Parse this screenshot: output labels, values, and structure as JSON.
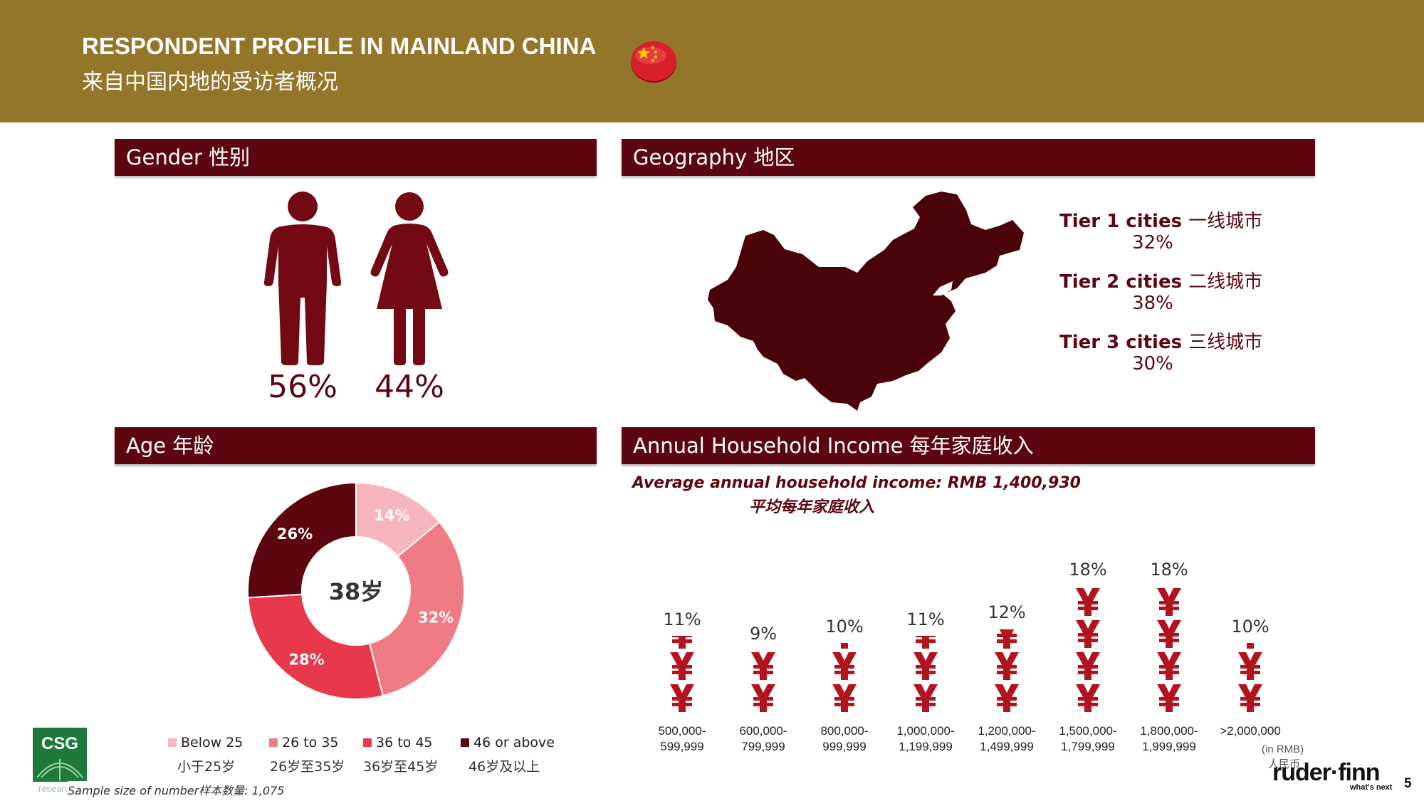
{
  "header": {
    "title_en": "RESPONDENT PROFILE IN MAINLAND CHINA",
    "title_cn": "来自中国内地的受访者概况",
    "flag_icon": "china-flag-icon"
  },
  "colors": {
    "header_bg": "#94762a",
    "band_bg": "#5c0710",
    "dark_red": "#5c0710",
    "age_below_25": "#f7b6be",
    "age_26_35": "#ef7b85",
    "age_36_45": "#e8384b",
    "age_46_above": "#5c0710"
  },
  "gender": {
    "title": "Gender 性别",
    "male_pct": "56%",
    "female_pct": "44%",
    "male_icon": "male-figure-icon",
    "female_icon": "female-figure-icon"
  },
  "geography": {
    "title": "Geography 地区",
    "map_icon": "china-map-icon",
    "tiers": [
      {
        "label": "Tier 1 cities",
        "label_cn": "一线城市",
        "value": "32%"
      },
      {
        "label": "Tier 2 cities",
        "label_cn": "二线城市",
        "value": "38%"
      },
      {
        "label": "Tier 3 cities",
        "label_cn": "三线城市",
        "value": "30%"
      }
    ]
  },
  "age": {
    "title": "Age 年龄",
    "center_label": "38岁",
    "slices": [
      {
        "label": "14%",
        "value": 14,
        "color": "#f7b6be"
      },
      {
        "label": "32%",
        "value": 32,
        "color": "#ef7b85"
      },
      {
        "label": "28%",
        "value": 28,
        "color": "#e8384b"
      },
      {
        "label": "26%",
        "value": 26,
        "color": "#5c0710"
      }
    ],
    "legend": [
      {
        "en": "Below 25",
        "cn": "小于25岁",
        "color": "#f7b6be"
      },
      {
        "en": "26 to 35",
        "cn": "26岁至35岁",
        "color": "#ef7b85"
      },
      {
        "en": "36 to 45",
        "cn": "36岁至45岁",
        "color": "#e8384b"
      },
      {
        "en": "46 or above",
        "cn": "46岁及以上",
        "color": "#5c0710"
      }
    ]
  },
  "income": {
    "title": "Annual Household Income 每年家庭收入",
    "avg_en": "Average annual household income: RMB 1,400,930",
    "avg_cn": "平均每年家庭收入",
    "unit_en": "(in RMB)",
    "unit_cn": "人民币",
    "yen_icon": "yen-icon",
    "brackets": [
      {
        "range": "500,000-\n599,999",
        "pct": "11%",
        "value": 11
      },
      {
        "range": "600,000-\n799,999",
        "pct": "9%",
        "value": 9
      },
      {
        "range": "800,000-\n999,999",
        "pct": "10%",
        "value": 10
      },
      {
        "range": "1,000,000-\n1,199,999",
        "pct": "11%",
        "value": 11
      },
      {
        "range": "1,200,000-\n1,499,999",
        "pct": "12%",
        "value": 12
      },
      {
        "range": "1,500,000-\n1,799,999",
        "pct": "18%",
        "value": 18
      },
      {
        "range": "1,800,000-\n1,999,999",
        "pct": "18%",
        "value": 18
      },
      {
        "range": ">2,000,000",
        "pct": "10%",
        "value": 10
      }
    ]
  },
  "footer": {
    "sample_size": "Sample size of number样本数量: 1,075",
    "csg_logo_text": "CSG",
    "csg_sub": "research",
    "rf_logo": "ruder·finn",
    "rf_tagline": "what's next",
    "page_number": "5"
  }
}
